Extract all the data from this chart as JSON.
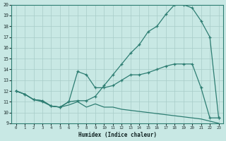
{
  "xlabel": "Humidex (Indice chaleur)",
  "xlim": [
    -0.5,
    23.5
  ],
  "ylim": [
    9,
    20
  ],
  "xticks": [
    0,
    1,
    2,
    3,
    4,
    5,
    6,
    7,
    8,
    9,
    10,
    11,
    12,
    13,
    14,
    15,
    16,
    17,
    18,
    19,
    20,
    21,
    22,
    23
  ],
  "yticks": [
    9,
    10,
    11,
    12,
    13,
    14,
    15,
    16,
    17,
    18,
    19,
    20
  ],
  "background_color": "#c8e8e4",
  "line_color": "#2d7d72",
  "grid_color": "#a8ccc8",
  "curve1_x": [
    0,
    1,
    2,
    3,
    4,
    5,
    6,
    7,
    8,
    9,
    10,
    11,
    12,
    13,
    14,
    15,
    16,
    17,
    18,
    19,
    20,
    21,
    22,
    23
  ],
  "curve1_y": [
    12.0,
    11.7,
    11.2,
    11.1,
    10.6,
    10.5,
    11.0,
    11.1,
    11.1,
    11.5,
    12.5,
    13.5,
    14.5,
    15.5,
    16.3,
    17.5,
    18.0,
    19.1,
    20.0,
    20.0,
    19.7,
    18.5,
    17.0,
    9.5
  ],
  "curve2_x": [
    0,
    1,
    2,
    3,
    4,
    5,
    6,
    7,
    8,
    9,
    10,
    11,
    12,
    13,
    14,
    15,
    16,
    17,
    18,
    19,
    20,
    21,
    22,
    23
  ],
  "curve2_y": [
    12.0,
    11.7,
    11.2,
    11.0,
    10.6,
    10.5,
    11.0,
    13.8,
    13.5,
    12.3,
    12.3,
    12.5,
    13.0,
    13.5,
    13.5,
    13.7,
    14.0,
    14.3,
    14.5,
    14.5,
    14.5,
    12.3,
    9.5,
    9.5
  ],
  "curve3_x": [
    0,
    1,
    2,
    3,
    4,
    5,
    6,
    7,
    8,
    9,
    10,
    11,
    12,
    13,
    14,
    15,
    16,
    17,
    18,
    19,
    20,
    21,
    22,
    23
  ],
  "curve3_y": [
    12.0,
    11.7,
    11.2,
    11.1,
    10.6,
    10.5,
    10.7,
    11.0,
    10.5,
    10.8,
    10.5,
    10.5,
    10.3,
    10.2,
    10.1,
    10.0,
    9.9,
    9.8,
    9.7,
    9.6,
    9.5,
    9.4,
    9.2,
    9.0
  ]
}
